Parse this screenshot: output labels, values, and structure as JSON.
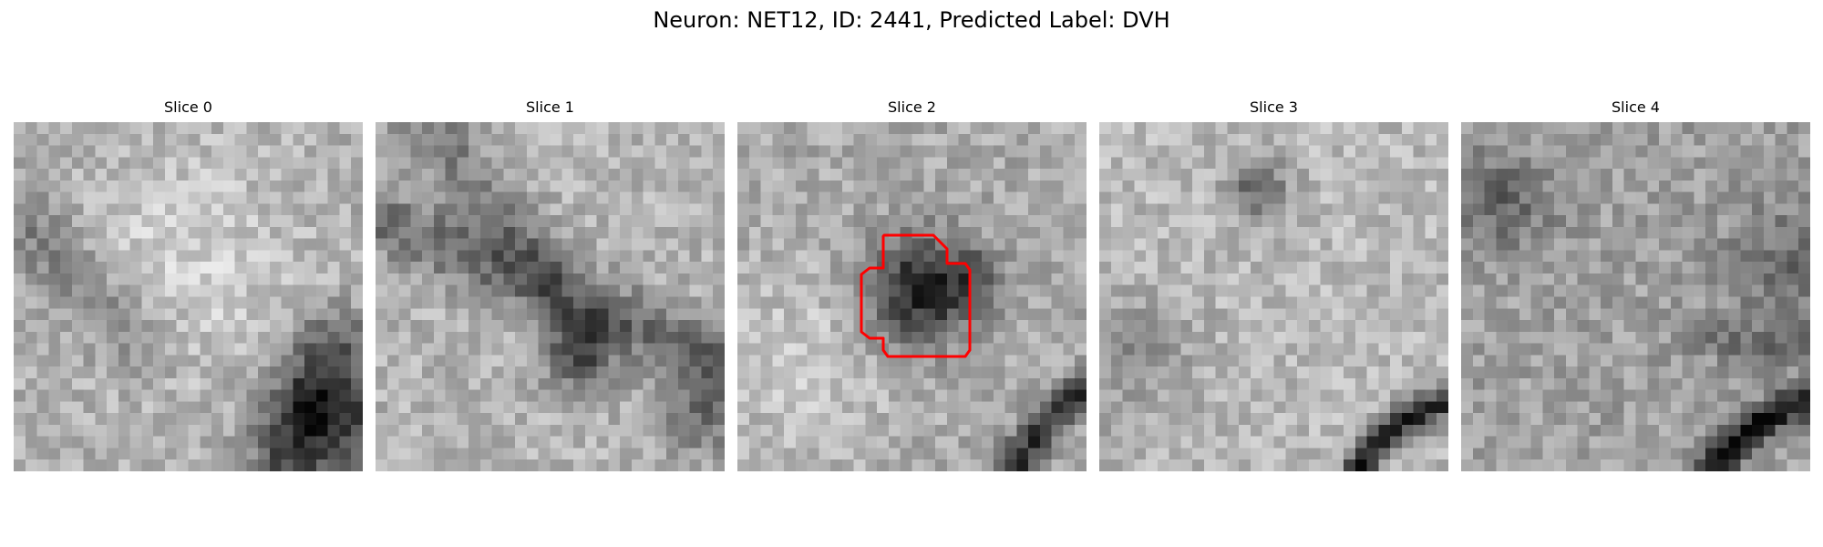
{
  "figure": {
    "title": "Neuron: NET12, ID: 2441, Predicted Label: DVH"
  },
  "panels": [
    {
      "label": "Slice 0",
      "has_roi": false
    },
    {
      "label": "Slice 1",
      "has_roi": false
    },
    {
      "label": "Slice 2",
      "has_roi": true
    },
    {
      "label": "Slice 3",
      "has_roi": false
    },
    {
      "label": "Slice 4",
      "has_roi": false
    }
  ],
  "colors": {
    "roi_outline": "#ff0000",
    "background": "#ffffff"
  }
}
